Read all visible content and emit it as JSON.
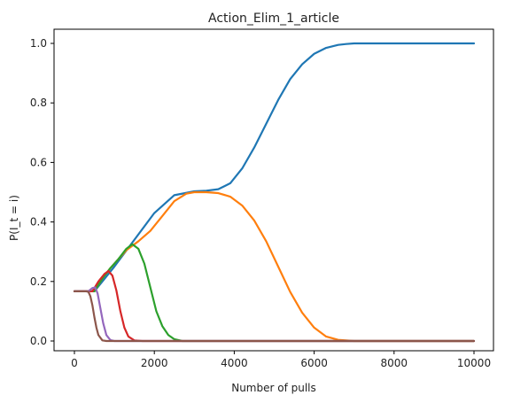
{
  "chart_data": {
    "type": "line",
    "title": "Action_Elim_1_article",
    "xlabel": "Number of pulls",
    "ylabel": "P(I_t = i)",
    "xlim": [
      0,
      10000
    ],
    "ylim": [
      0.0,
      1.0
    ],
    "xticks": [
      "0",
      "2000",
      "4000",
      "6000",
      "8000",
      "10000"
    ],
    "yticks": [
      "0.0",
      "0.2",
      "0.4",
      "0.6",
      "0.8",
      "1.0"
    ],
    "grid": false,
    "series": [
      {
        "color": "#1f77b4",
        "x": [
          0,
          500,
          1000,
          1500,
          2000,
          2500,
          3000,
          3300,
          3600,
          3900,
          4200,
          4500,
          4800,
          5100,
          5400,
          5700,
          6000,
          6300,
          6600,
          6800,
          7000,
          8000,
          10000
        ],
        "y": [
          0.167,
          0.167,
          0.25,
          0.34,
          0.43,
          0.49,
          0.503,
          0.505,
          0.51,
          0.53,
          0.58,
          0.65,
          0.73,
          0.81,
          0.88,
          0.93,
          0.965,
          0.985,
          0.995,
          0.998,
          1.0,
          1.0,
          1.0
        ]
      },
      {
        "color": "#ff7f0e",
        "x": [
          0,
          500,
          700,
          900,
          1100,
          1300,
          1600,
          1900,
          2200,
          2500,
          2800,
          3000,
          3300,
          3600,
          3900,
          4200,
          4500,
          4800,
          5100,
          5400,
          5700,
          6000,
          6300,
          6600,
          7000,
          8000,
          10000
        ],
        "y": [
          0.167,
          0.167,
          0.21,
          0.245,
          0.275,
          0.305,
          0.335,
          0.37,
          0.42,
          0.47,
          0.495,
          0.5,
          0.5,
          0.497,
          0.485,
          0.455,
          0.405,
          0.335,
          0.25,
          0.165,
          0.095,
          0.045,
          0.015,
          0.004,
          0.0,
          0.0,
          0.0
        ]
      },
      {
        "color": "#2ca02c",
        "x": [
          0,
          500,
          700,
          900,
          1100,
          1300,
          1450,
          1600,
          1750,
          1900,
          2050,
          2200,
          2350,
          2500,
          2700,
          3000,
          10000
        ],
        "y": [
          0.167,
          0.167,
          0.21,
          0.245,
          0.275,
          0.31,
          0.325,
          0.31,
          0.26,
          0.18,
          0.1,
          0.05,
          0.02,
          0.006,
          0.0,
          0.0,
          0.0
        ]
      },
      {
        "color": "#d62728",
        "x": [
          0,
          450,
          600,
          750,
          850,
          950,
          1050,
          1150,
          1250,
          1350,
          1500,
          1700,
          10000
        ],
        "y": [
          0.167,
          0.167,
          0.2,
          0.225,
          0.235,
          0.22,
          0.17,
          0.1,
          0.045,
          0.015,
          0.002,
          0.0,
          0.0
        ]
      },
      {
        "color": "#9467bd",
        "x": [
          0,
          350,
          450,
          520,
          580,
          650,
          720,
          800,
          900,
          1000,
          10000
        ],
        "y": [
          0.167,
          0.167,
          0.178,
          0.18,
          0.16,
          0.11,
          0.06,
          0.02,
          0.003,
          0.0,
          0.0
        ]
      },
      {
        "color": "#8c564b",
        "x": [
          0,
          300,
          350,
          400,
          450,
          500,
          550,
          600,
          700,
          800,
          10000
        ],
        "y": [
          0.167,
          0.167,
          0.165,
          0.15,
          0.12,
          0.08,
          0.045,
          0.02,
          0.002,
          0.0,
          0.0
        ]
      }
    ]
  }
}
